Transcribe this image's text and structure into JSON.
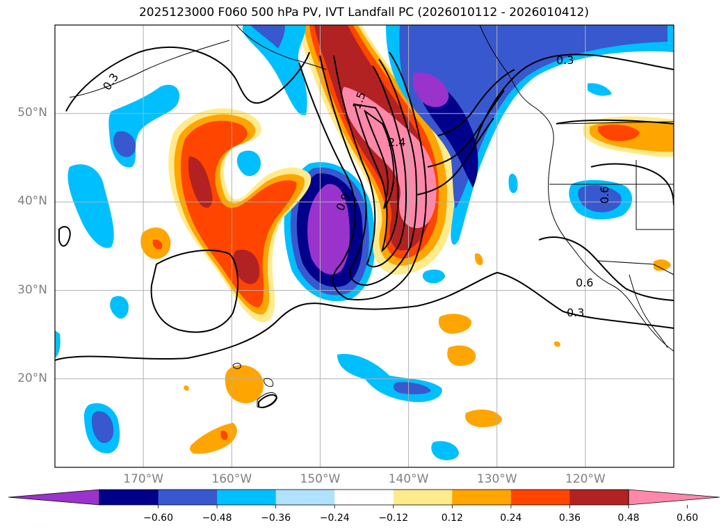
{
  "title": "2025123000 F060 500 hPa PV, IVT Landfall PC (2026010112 - 2026010412)",
  "map": {
    "projection": "PlateCarree",
    "extent": {
      "lon_min": -180,
      "lon_max": -110,
      "lat_min": 10,
      "lat_max": 60
    },
    "gridlines": true,
    "lat_ticks": [
      {
        "value": 20,
        "label": "20°N"
      },
      {
        "value": 30,
        "label": "30°N"
      },
      {
        "value": 40,
        "label": "40°N"
      },
      {
        "value": 50,
        "label": "50°N"
      }
    ],
    "lon_ticks": [
      {
        "value": -170,
        "label": "170°W"
      },
      {
        "value": -160,
        "label": "160°W"
      },
      {
        "value": -150,
        "label": "150°W"
      },
      {
        "value": -140,
        "label": "140°W"
      },
      {
        "value": -130,
        "label": "130°W"
      },
      {
        "value": -120,
        "label": "120°W"
      }
    ],
    "contour_labels": [
      "0.3",
      "0.6",
      "0.9",
      "1.5",
      "2.4"
    ]
  },
  "colorbar": {
    "extend": "both",
    "colors": [
      "#9933cc",
      "#00008b",
      "#3858cf",
      "#00bfff",
      "#b0e2ff",
      "#ffffff",
      "#ffeb8c",
      "#ffa500",
      "#ff4500",
      "#b22222",
      "#ff88aa"
    ],
    "tick_labels": [
      "−0.60",
      "−0.48",
      "−0.36",
      "−0.24",
      "−0.12",
      "0.12",
      "0.24",
      "0.36",
      "0.48",
      "0.60"
    ]
  },
  "colors": {
    "gridline": "#b0b0b0",
    "coast": "#000000",
    "frame": "#000000"
  }
}
